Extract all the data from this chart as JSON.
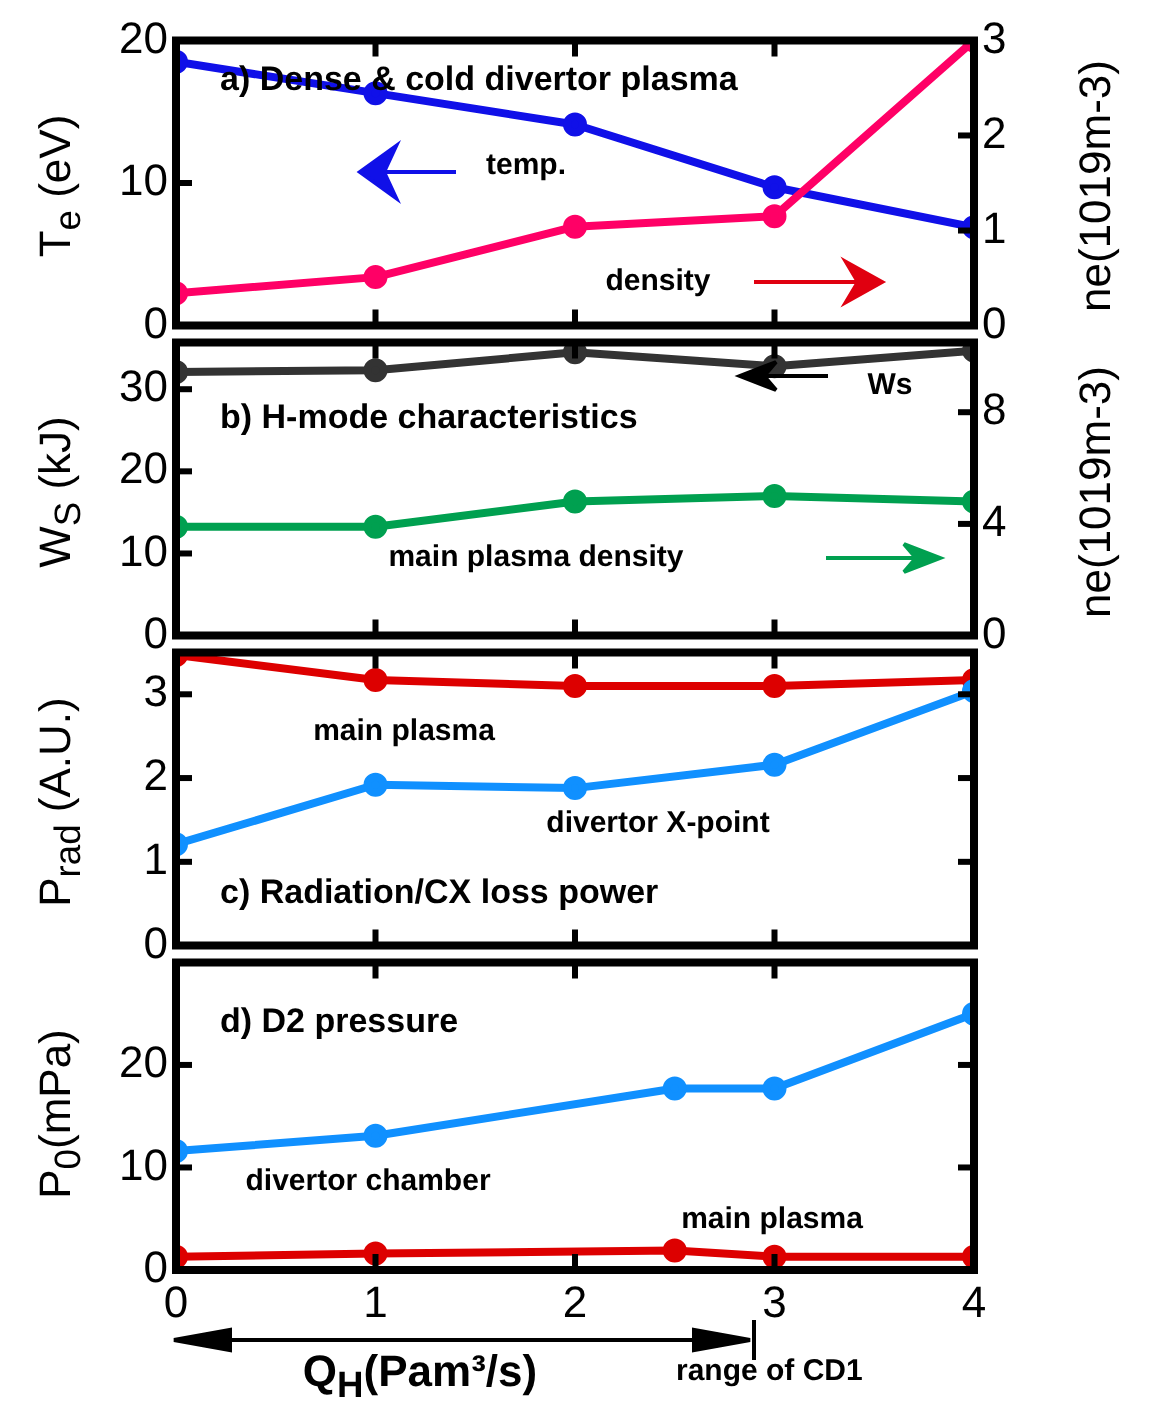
{
  "chart_data": [
    {
      "type": "line",
      "title": "a) Dense & cold divertor plasma",
      "ylabel": "T$_{e}$ (eV)",
      "y2label": "ne(1019m-3)",
      "x": [
        0,
        1,
        2,
        3,
        4
      ],
      "xlim": [
        0,
        4
      ],
      "xticks": [
        0,
        1,
        2,
        3,
        4
      ],
      "ylim": [
        0,
        20
      ],
      "yticks": [
        0,
        10,
        20
      ],
      "y2lim": [
        0,
        3
      ],
      "y2ticks": [
        0,
        1,
        2,
        3
      ],
      "tick_labels": "y",
      "marker": "circle",
      "line_style": "solid",
      "grid": false,
      "series": [
        {
          "name": "temp.",
          "color": "#1010e8",
          "values": [
            18.5,
            16.3,
            14.1,
            9.7,
            6.9
          ]
        },
        {
          "name": "density",
          "color": "#ff0066",
          "axis": "y2",
          "values": [
            0.34,
            0.51,
            1.04,
            1.15,
            3.0
          ]
        }
      ]
    },
    {
      "type": "line",
      "title": "b) H-mode characteristics",
      "ylabel": "W$_{S}$ (kJ)",
      "y2label": "ne(1019m-3)",
      "x": [
        0,
        1,
        2,
        3,
        4
      ],
      "xlim": [
        0,
        4
      ],
      "xticks": [
        0,
        1,
        2,
        3,
        4
      ],
      "ylim": [
        0,
        35.7
      ],
      "yticks": [
        0,
        10,
        20,
        30
      ],
      "y2lim": [
        0,
        10.5
      ],
      "y2ticks": [
        0,
        4,
        8
      ],
      "tick_labels": "y",
      "marker": "circle",
      "line_style": "solid",
      "grid": false,
      "series": [
        {
          "name": "Ws",
          "color": "#333333",
          "values": [
            32.1,
            32.3,
            34.5,
            32.8,
            34.7
          ]
        },
        {
          "name": "main plasma density",
          "color": "#00a050",
          "axis": "y2",
          "values": [
            3.9,
            3.9,
            4.8,
            5.0,
            4.8
          ]
        }
      ]
    },
    {
      "type": "line",
      "title": "c) Radiation/CX loss power",
      "ylabel": "P$_{rad}$  (A.U.)",
      "x": [
        0,
        1,
        2,
        3,
        4
      ],
      "xlim": [
        0,
        4
      ],
      "xticks": [
        0,
        1,
        2,
        3,
        4
      ],
      "ylim": [
        0,
        3.5
      ],
      "yticks": [
        0,
        1,
        2,
        3
      ],
      "tick_labels": "y",
      "marker": "circle",
      "line_style": "solid",
      "grid": false,
      "series": [
        {
          "name": "main plasma",
          "color": "#dd0000",
          "values": [
            3.47,
            3.17,
            3.1,
            3.1,
            3.17
          ]
        },
        {
          "name": "divertor X-point",
          "color": "#1090ff",
          "values": [
            1.21,
            1.92,
            1.88,
            2.16,
            3.04
          ]
        }
      ]
    },
    {
      "type": "line",
      "title": "d) D2 pressure",
      "ylabel": "P$_{0}$(mPa)",
      "xlabel": "Q$_{H}$(Pam³/s)",
      "x": [
        0,
        1,
        2.5,
        3,
        4
      ],
      "xlim": [
        0,
        4
      ],
      "xticks": [
        0,
        1,
        2,
        3,
        4
      ],
      "ylim": [
        0,
        30
      ],
      "yticks": [
        0,
        10,
        20
      ],
      "marker": "circle",
      "line_style": "solid",
      "grid": false,
      "series": [
        {
          "name": "divertor chamber",
          "color": "#1090ff",
          "values": [
            11.6,
            13.1,
            17.7,
            17.7,
            25.0
          ]
        },
        {
          "name": "main plasma",
          "color": "#dd0000",
          "values": [
            1.3,
            1.6,
            1.9,
            1.3,
            1.3
          ]
        }
      ],
      "annotations": [
        "range of CD1"
      ]
    }
  ]
}
